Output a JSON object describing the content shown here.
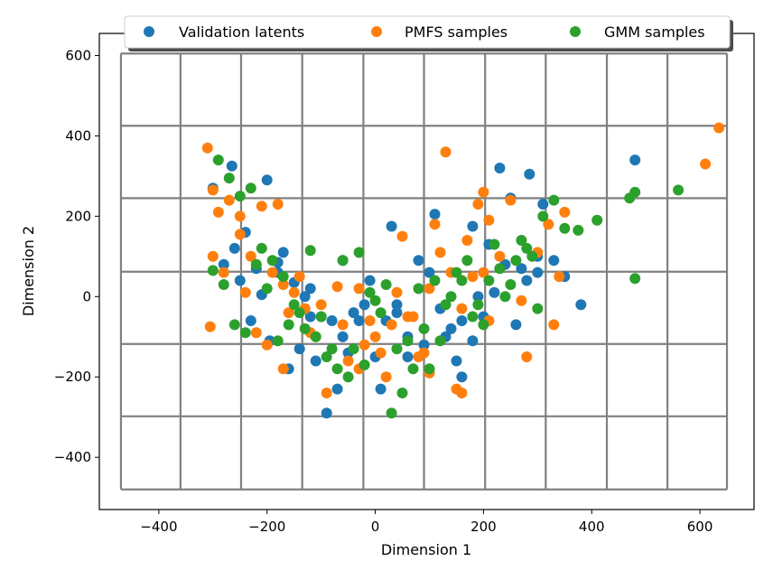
{
  "chart_data": {
    "type": "scatter",
    "title": "",
    "xlabel": "Dimension 1",
    "ylabel": "Dimension 2",
    "xlim": [
      -510,
      700
    ],
    "ylim": [
      -530,
      655
    ],
    "xticks": [
      -400,
      -200,
      0,
      200,
      400,
      600
    ],
    "yticks": [
      -400,
      -200,
      0,
      200,
      400,
      600
    ],
    "xtick_labels": [
      "−400",
      "−200",
      "0",
      "200",
      "400",
      "600"
    ],
    "ytick_labels": [
      "−400",
      "−200",
      "0",
      "200",
      "400",
      "600"
    ],
    "grid": {
      "xlines": [
        -470,
        -360,
        -248,
        -135,
        -22,
        90,
        203,
        315,
        428,
        540,
        650
      ],
      "ylines": [
        605,
        425,
        245,
        62,
        -118,
        -298,
        -480
      ],
      "color": "#808080"
    },
    "legend_position": "top",
    "series": [
      {
        "name": "Validation latents",
        "color": "#1f77b4",
        "points": [
          [
            -210,
            5
          ],
          [
            -180,
            85
          ],
          [
            -150,
            35
          ],
          [
            -120,
            20
          ],
          [
            -100,
            -50
          ],
          [
            -80,
            -60
          ],
          [
            -60,
            -100
          ],
          [
            -40,
            -40
          ],
          [
            -20,
            -20
          ],
          [
            0,
            -150
          ],
          [
            20,
            -60
          ],
          [
            40,
            -20
          ],
          [
            60,
            -100
          ],
          [
            80,
            90
          ],
          [
            100,
            60
          ],
          [
            120,
            -30
          ],
          [
            140,
            -80
          ],
          [
            160,
            -60
          ],
          [
            180,
            -110
          ],
          [
            200,
            -50
          ],
          [
            220,
            10
          ],
          [
            240,
            80
          ],
          [
            260,
            -70
          ],
          [
            280,
            40
          ],
          [
            300,
            100
          ],
          [
            -240,
            160
          ],
          [
            -260,
            120
          ],
          [
            -250,
            40
          ],
          [
            -230,
            -60
          ],
          [
            -200,
            290
          ],
          [
            -170,
            110
          ],
          [
            -160,
            -180
          ],
          [
            -140,
            -130
          ],
          [
            -110,
            -160
          ],
          [
            -90,
            -290
          ],
          [
            -70,
            -230
          ],
          [
            -50,
            -140
          ],
          [
            30,
            175
          ],
          [
            110,
            205
          ],
          [
            180,
            175
          ],
          [
            230,
            320
          ],
          [
            250,
            245
          ],
          [
            285,
            305
          ],
          [
            310,
            230
          ],
          [
            350,
            50
          ],
          [
            380,
            -20
          ],
          [
            480,
            340
          ],
          [
            150,
            -160
          ],
          [
            160,
            -200
          ],
          [
            130,
            -100
          ],
          [
            60,
            -150
          ],
          [
            40,
            -40
          ],
          [
            -10,
            40
          ],
          [
            -30,
            -60
          ],
          [
            -120,
            -50
          ],
          [
            -180,
            60
          ],
          [
            -280,
            80
          ],
          [
            -300,
            270
          ],
          [
            -220,
            70
          ],
          [
            190,
            0
          ],
          [
            270,
            70
          ],
          [
            300,
            60
          ],
          [
            -195,
            -110
          ],
          [
            10,
            -230
          ],
          [
            90,
            -120
          ],
          [
            -130,
            0
          ],
          [
            -60,
            90
          ],
          [
            210,
            130
          ],
          [
            330,
            90
          ],
          [
            -265,
            325
          ]
        ]
      },
      {
        "name": "PMFS samples",
        "color": "#ff7f0e",
        "points": [
          [
            -310,
            370
          ],
          [
            -300,
            265
          ],
          [
            -290,
            210
          ],
          [
            -270,
            240
          ],
          [
            -250,
            155
          ],
          [
            -230,
            100
          ],
          [
            -210,
            225
          ],
          [
            -190,
            60
          ],
          [
            -170,
            30
          ],
          [
            -150,
            10
          ],
          [
            -130,
            -30
          ],
          [
            -110,
            -100
          ],
          [
            -90,
            -240
          ],
          [
            -70,
            25
          ],
          [
            -50,
            -160
          ],
          [
            -30,
            -180
          ],
          [
            -10,
            -60
          ],
          [
            10,
            -140
          ],
          [
            30,
            -70
          ],
          [
            50,
            150
          ],
          [
            70,
            -50
          ],
          [
            90,
            -140
          ],
          [
            110,
            180
          ],
          [
            130,
            360
          ],
          [
            150,
            -230
          ],
          [
            170,
            140
          ],
          [
            190,
            230
          ],
          [
            200,
            260
          ],
          [
            210,
            190
          ],
          [
            230,
            100
          ],
          [
            250,
            240
          ],
          [
            280,
            -150
          ],
          [
            300,
            110
          ],
          [
            320,
            180
          ],
          [
            340,
            50
          ],
          [
            350,
            210
          ],
          [
            610,
            330
          ],
          [
            635,
            420
          ],
          [
            -300,
            100
          ],
          [
            -280,
            60
          ],
          [
            -220,
            -90
          ],
          [
            -180,
            230
          ],
          [
            -160,
            -40
          ],
          [
            -140,
            50
          ],
          [
            -100,
            -20
          ],
          [
            -60,
            -70
          ],
          [
            -20,
            -120
          ],
          [
            0,
            -100
          ],
          [
            20,
            -200
          ],
          [
            60,
            -50
          ],
          [
            80,
            -150
          ],
          [
            100,
            20
          ],
          [
            120,
            110
          ],
          [
            140,
            60
          ],
          [
            160,
            -30
          ],
          [
            180,
            50
          ],
          [
            200,
            60
          ],
          [
            -240,
            10
          ],
          [
            -200,
            -120
          ],
          [
            -170,
            -180
          ],
          [
            -250,
            200
          ],
          [
            -30,
            20
          ],
          [
            40,
            10
          ],
          [
            270,
            -10
          ],
          [
            330,
            -70
          ],
          [
            -305,
            -75
          ],
          [
            160,
            -240
          ],
          [
            100,
            -190
          ],
          [
            -120,
            -90
          ],
          [
            210,
            -60
          ]
        ]
      },
      {
        "name": "GMM samples",
        "color": "#2ca02c",
        "points": [
          [
            -290,
            340
          ],
          [
            -270,
            295
          ],
          [
            -250,
            250
          ],
          [
            -230,
            270
          ],
          [
            -210,
            120
          ],
          [
            -190,
            90
          ],
          [
            -170,
            50
          ],
          [
            -150,
            -20
          ],
          [
            -130,
            -80
          ],
          [
            -110,
            -100
          ],
          [
            -90,
            -150
          ],
          [
            -70,
            -180
          ],
          [
            -50,
            -200
          ],
          [
            -30,
            110
          ],
          [
            -10,
            10
          ],
          [
            10,
            -40
          ],
          [
            30,
            -290
          ],
          [
            50,
            -240
          ],
          [
            70,
            -180
          ],
          [
            90,
            -80
          ],
          [
            110,
            40
          ],
          [
            130,
            -20
          ],
          [
            150,
            60
          ],
          [
            170,
            90
          ],
          [
            190,
            -20
          ],
          [
            210,
            40
          ],
          [
            230,
            70
          ],
          [
            250,
            30
          ],
          [
            270,
            140
          ],
          [
            290,
            100
          ],
          [
            310,
            200
          ],
          [
            330,
            240
          ],
          [
            350,
            170
          ],
          [
            375,
            165
          ],
          [
            410,
            190
          ],
          [
            470,
            245
          ],
          [
            480,
            45
          ],
          [
            480,
            260
          ],
          [
            560,
            265
          ],
          [
            -300,
            65
          ],
          [
            -280,
            30
          ],
          [
            -260,
            -70
          ],
          [
            -240,
            -90
          ],
          [
            -220,
            80
          ],
          [
            -200,
            20
          ],
          [
            -180,
            -110
          ],
          [
            -160,
            -70
          ],
          [
            -140,
            -40
          ],
          [
            -120,
            115
          ],
          [
            -100,
            -50
          ],
          [
            -80,
            -130
          ],
          [
            -60,
            90
          ],
          [
            -40,
            -130
          ],
          [
            -20,
            -170
          ],
          [
            0,
            -10
          ],
          [
            20,
            30
          ],
          [
            40,
            -130
          ],
          [
            60,
            -110
          ],
          [
            80,
            20
          ],
          [
            100,
            -180
          ],
          [
            120,
            -110
          ],
          [
            140,
            0
          ],
          [
            160,
            40
          ],
          [
            180,
            -50
          ],
          [
            200,
            -70
          ],
          [
            220,
            130
          ],
          [
            240,
            0
          ],
          [
            260,
            90
          ],
          [
            280,
            120
          ],
          [
            300,
            -30
          ]
        ]
      }
    ]
  }
}
